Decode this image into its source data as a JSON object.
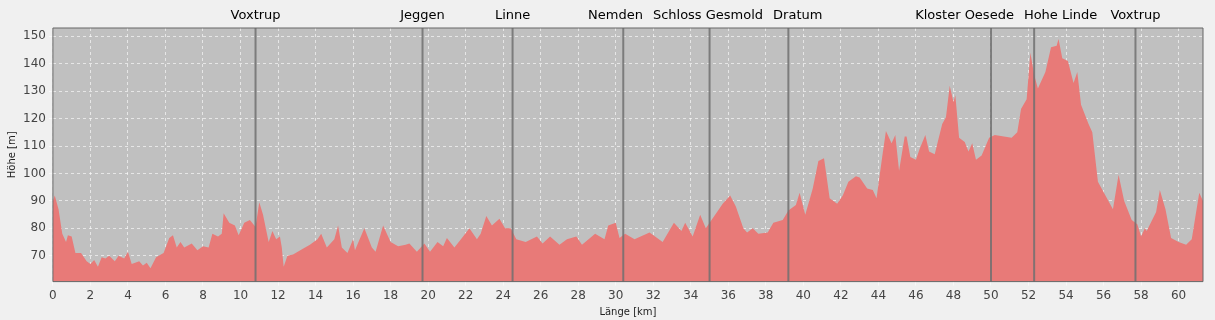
{
  "chart_data": {
    "type": "area",
    "xlabel": "Länge [km]",
    "ylabel": "Höhe [m]",
    "xlim": [
      0,
      61.3
    ],
    "ylim": [
      60.6,
      153
    ],
    "xticks": [
      0,
      2,
      4,
      6,
      8,
      10,
      12,
      14,
      16,
      18,
      20,
      22,
      24,
      26,
      28,
      30,
      32,
      34,
      36,
      38,
      40,
      42,
      44,
      46,
      48,
      50,
      52,
      54,
      56,
      58,
      60
    ],
    "yticks": [
      70,
      80,
      90,
      100,
      110,
      120,
      130,
      140,
      150
    ],
    "grid": true,
    "legend": false,
    "ref_lines": [
      {
        "axis": "x",
        "value": 10.8,
        "label": "Voxtrup",
        "color": "#707070"
      },
      {
        "axis": "x",
        "value": 19.7,
        "label": "Jeggen",
        "color": "#707070"
      },
      {
        "axis": "x",
        "value": 24.5,
        "label": "Linne",
        "color": "#707070"
      },
      {
        "axis": "x",
        "value": 30.4,
        "label": "Nemden",
        "color": "#707070"
      },
      {
        "axis": "x",
        "value": 35.0,
        "label": "Schloss Gesmold",
        "color": "#707070"
      },
      {
        "axis": "x",
        "value": 39.2,
        "label": "Dratum",
        "color": "#707070"
      },
      {
        "axis": "x",
        "value": 50.0,
        "label": "Kloster Oesede",
        "color": "#707070"
      },
      {
        "axis": "x",
        "value": 52.3,
        "label": "Hohe Linde",
        "color": "#707070"
      },
      {
        "axis": "x",
        "value": 57.7,
        "label": "Voxtrup",
        "color": "#707070"
      }
    ],
    "series": [
      {
        "color": "#e87a78",
        "x": [
          0,
          0.1,
          0.3,
          0.5,
          0.7,
          0.8,
          1.0,
          1.2,
          1.5,
          1.8,
          2.0,
          2.2,
          2.4,
          2.6,
          2.8,
          3.0,
          3.3,
          3.5,
          3.8,
          4.0,
          4.2,
          4.6,
          4.8,
          5.0,
          5.2,
          5.5,
          5.9,
          6.2,
          6.4,
          6.6,
          6.8,
          7.0,
          7.4,
          7.7,
          8.0,
          8.3,
          8.5,
          8.8,
          9.0,
          9.1,
          9.4,
          9.7,
          9.9,
          10.2,
          10.5,
          10.8,
          11.0,
          11.2,
          11.5,
          11.7,
          11.9,
          12.1,
          12.2,
          12.3,
          12.5,
          12.8,
          13.3,
          13.7,
          14.1,
          14.3,
          14.6,
          15.0,
          15.2,
          15.4,
          15.7,
          16.0,
          16.1,
          16.6,
          17.0,
          17.2,
          17.6,
          18.0,
          18.4,
          18.8,
          19.0,
          19.4,
          19.8,
          20.1,
          20.5,
          20.8,
          21.0,
          21.4,
          21.8,
          22.2,
          22.6,
          22.8,
          23.1,
          23.4,
          23.8,
          24.1,
          24.4,
          24.7,
          25.2,
          25.8,
          26.1,
          26.5,
          27.0,
          27.4,
          27.9,
          28.2,
          28.9,
          29.4,
          29.6,
          30.0,
          30.2,
          30.5,
          31.0,
          31.8,
          32.5,
          33.1,
          33.5,
          33.7,
          34.1,
          34.5,
          34.8,
          35.4,
          35.7,
          36.1,
          36.4,
          36.8,
          37.0,
          37.3,
          37.6,
          38.1,
          38.4,
          38.9,
          39.2,
          39.6,
          39.8,
          40.1,
          40.5,
          40.8,
          41.1,
          41.4,
          41.8,
          42.1,
          42.4,
          42.8,
          43.0,
          43.4,
          43.7,
          43.9,
          44.2,
          44.4,
          44.7,
          44.9,
          45.1,
          45.4,
          45.5,
          45.7,
          46.0,
          46.2,
          46.5,
          46.7,
          47.0,
          47.4,
          47.6,
          47.8,
          48.0,
          48.1,
          48.3,
          48.6,
          48.8,
          49.0,
          49.2,
          49.5,
          49.9,
          50.2,
          51.1,
          51.4,
          51.6,
          51.9,
          52.1,
          52.3,
          52.5,
          52.9,
          53.2,
          53.5,
          53.6,
          53.8,
          54.1,
          54.4,
          54.6,
          54.8,
          55.2,
          55.4,
          55.7,
          56.1,
          56.5,
          56.8,
          57.1,
          57.5,
          57.8,
          58.0,
          58.2,
          58.3,
          58.8,
          59.0,
          59.3,
          59.6,
          60.0,
          60.4,
          60.7,
          61.1,
          61.3
        ],
        "values": [
          90,
          92,
          87,
          78,
          75,
          77.5,
          77,
          71,
          71,
          68,
          67,
          68.5,
          66,
          69.5,
          69,
          70,
          68,
          70,
          69,
          71.5,
          67,
          68,
          66.5,
          67.5,
          65.5,
          69.5,
          71,
          76.5,
          77.5,
          73,
          75,
          73,
          74.5,
          72,
          73.5,
          73,
          78,
          77,
          78,
          85.5,
          82,
          81,
          77.5,
          82,
          83,
          80.5,
          89.5,
          85,
          75,
          79,
          76,
          77,
          73,
          66,
          70,
          70.5,
          72.5,
          74,
          76,
          78,
          73,
          76,
          81,
          73,
          71,
          76,
          72,
          80,
          73,
          71.5,
          81,
          75,
          73.5,
          74,
          74.5,
          71.5,
          74.5,
          71.5,
          75,
          73.5,
          76.5,
          73,
          76.5,
          80,
          76,
          78,
          84.5,
          81,
          83.5,
          80,
          80,
          76,
          75,
          77,
          74.5,
          77,
          74,
          76,
          77,
          74,
          78,
          76,
          81,
          82,
          76.5,
          78,
          76,
          78.5,
          75,
          82,
          79,
          82,
          77,
          85,
          80,
          86,
          89,
          92,
          88,
          80,
          78.5,
          80,
          78,
          78.5,
          82,
          83,
          86.5,
          88.5,
          93,
          85,
          94.5,
          104.5,
          105.5,
          91,
          89,
          92,
          97,
          99,
          98.5,
          94.5,
          94,
          91,
          106,
          115.5,
          111,
          114,
          101,
          113.5,
          113.5,
          106,
          105,
          109,
          114,
          108,
          107,
          118,
          120.5,
          132,
          126,
          128.5,
          113,
          111.5,
          108,
          111,
          105,
          106.5,
          113,
          114,
          113,
          115,
          123.5,
          127,
          144,
          136,
          131,
          137,
          146,
          146.5,
          149,
          142,
          141,
          133,
          137,
          125,
          118,
          115,
          97,
          92,
          87,
          99.5,
          90,
          83,
          81.5,
          77,
          80,
          79,
          86,
          94,
          87,
          76.5,
          75,
          74,
          76,
          93,
          90
        ]
      }
    ]
  }
}
